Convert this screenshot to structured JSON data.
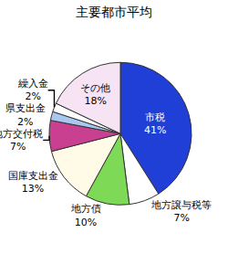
{
  "chart_data": {
    "type": "pie",
    "title": "主要都市平均",
    "categories": [
      "市税",
      "地方譲与税等",
      "地方債",
      "国庫支出金",
      "地方交付税",
      "県支出金",
      "繰入金",
      "その他"
    ],
    "values": [
      41,
      7,
      10,
      13,
      7,
      2,
      2,
      18
    ],
    "value_labels": [
      "41%",
      "7%",
      "10%",
      "13%",
      "7%",
      "2%",
      "2%",
      "18%"
    ],
    "colors": [
      "#1f3fd6",
      "#ffffff",
      "#7ed957",
      "#fffbe6",
      "#c8408f",
      "#a9c8f0",
      "#ffffff",
      "#f6e4f4"
    ],
    "data_labels": true
  }
}
